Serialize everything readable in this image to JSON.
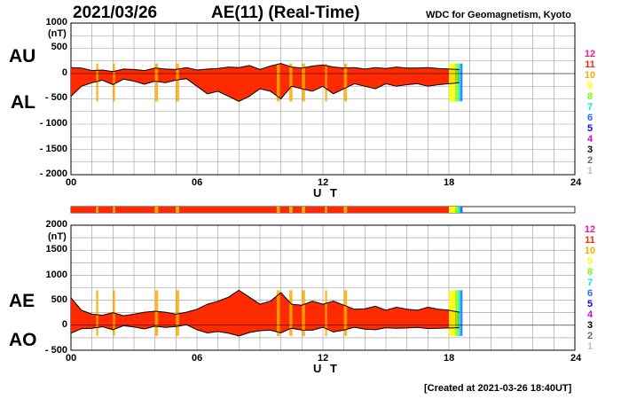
{
  "header": {
    "date": "2021/03/26",
    "title": "AE(11) (Real-Time)",
    "source": "WDC for Geomagnetism, Kyoto"
  },
  "footer": {
    "created": "[Created at 2021-03-26 18:40UT]"
  },
  "colors": {
    "12": "#ff1493",
    "11": "#ff2a00",
    "10": "#ffaa00",
    "9": "#ffff00",
    "8": "#7fff00",
    "7": "#00e5ee",
    "6": "#1e6fff",
    "5": "#1a00ff",
    "4": "#dd00dd",
    "3": "#000000",
    "2": "#666666",
    "1": "#bbbbbb"
  },
  "legend": [
    "12",
    "11",
    "10",
    "9",
    "8",
    "7",
    "6",
    "5",
    "4",
    "3",
    "2",
    "1"
  ],
  "chart_data": [
    {
      "type": "area",
      "panel": "AU/AL",
      "series": [
        {
          "name": "AU",
          "x": [
            0,
            0.5,
            1,
            1.5,
            2,
            2.5,
            3,
            3.5,
            4,
            4.5,
            5,
            5.5,
            6,
            6.5,
            7,
            7.5,
            8,
            8.5,
            9,
            9.5,
            10,
            10.5,
            11,
            11.5,
            12,
            12.5,
            13,
            13.5,
            14,
            14.5,
            15,
            15.5,
            16,
            16.5,
            17,
            17.5,
            18,
            18.5
          ],
          "values": [
            120,
            110,
            60,
            70,
            40,
            90,
            80,
            60,
            110,
            90,
            80,
            120,
            70,
            90,
            100,
            130,
            120,
            160,
            80,
            150,
            200,
            130,
            110,
            150,
            170,
            130,
            110,
            120,
            90,
            120,
            100,
            130,
            110,
            110,
            120,
            100,
            90,
            80
          ]
        },
        {
          "name": "AL",
          "x": [
            0,
            0.5,
            1,
            1.5,
            2,
            2.5,
            3,
            3.5,
            4,
            4.5,
            5,
            5.5,
            6,
            6.5,
            7,
            7.5,
            8,
            8.5,
            9,
            9.5,
            10,
            10.5,
            11,
            11.5,
            12,
            12.5,
            13,
            13.5,
            14,
            14.5,
            15,
            15.5,
            16,
            16.5,
            17,
            17.5,
            18,
            18.5
          ],
          "values": [
            -450,
            -250,
            -180,
            -130,
            -220,
            -110,
            -150,
            -210,
            -150,
            -180,
            -130,
            -100,
            -250,
            -400,
            -350,
            -450,
            -550,
            -450,
            -300,
            -350,
            -500,
            -250,
            -300,
            -350,
            -250,
            -400,
            -300,
            -200,
            -250,
            -300,
            -200,
            -250,
            -220,
            -200,
            -250,
            -220,
            -200,
            -180
          ]
        }
      ],
      "ylim": [
        -2000,
        1000
      ],
      "yticks": [
        "1000",
        "500",
        "0",
        "- 500",
        "- 1000",
        "- 1500",
        "- 2000"
      ],
      "yunit": "(nT)",
      "xticks": [
        "00",
        "06",
        "12",
        "18",
        "24"
      ],
      "xlabel": "U T",
      "labels": [
        "AU",
        "AL"
      ]
    },
    {
      "type": "area",
      "panel": "AE/AO",
      "series": [
        {
          "name": "AE",
          "x": [
            0,
            0.5,
            1,
            1.5,
            2,
            2.5,
            3,
            3.5,
            4,
            4.5,
            5,
            5.5,
            6,
            6.5,
            7,
            7.5,
            8,
            8.5,
            9,
            9.5,
            10,
            10.5,
            11,
            11.5,
            12,
            12.5,
            13,
            13.5,
            14,
            14.5,
            15,
            15.5,
            16,
            16.5,
            17,
            17.5,
            18,
            18.5
          ],
          "values": [
            550,
            300,
            220,
            200,
            250,
            190,
            220,
            260,
            280,
            260,
            220,
            260,
            320,
            420,
            480,
            560,
            700,
            560,
            420,
            480,
            650,
            420,
            400,
            480,
            420,
            480,
            400,
            320,
            330,
            380,
            300,
            360,
            320,
            300,
            360,
            320,
            300,
            260
          ]
        },
        {
          "name": "AO",
          "x": [
            0,
            0.5,
            1,
            1.5,
            2,
            2.5,
            3,
            3.5,
            4,
            4.5,
            5,
            5.5,
            6,
            6.5,
            7,
            7.5,
            8,
            8.5,
            9,
            9.5,
            10,
            10.5,
            11,
            11.5,
            12,
            12.5,
            13,
            13.5,
            14,
            14.5,
            15,
            15.5,
            16,
            16.5,
            17,
            17.5,
            18,
            18.5
          ],
          "values": [
            -160,
            -70,
            -60,
            -30,
            -90,
            -10,
            -35,
            -75,
            -20,
            -45,
            -25,
            10,
            -90,
            -155,
            -125,
            -160,
            -215,
            -145,
            -110,
            -100,
            -150,
            -60,
            -95,
            -100,
            -40,
            -135,
            -95,
            -40,
            -80,
            -90,
            -50,
            -60,
            -55,
            -45,
            -65,
            -60,
            -55,
            -50
          ]
        }
      ],
      "ylim": [
        -500,
        2000
      ],
      "yticks": [
        "2000",
        "1500",
        "1000",
        "500",
        "0",
        "- 500"
      ],
      "yunit": "(nT)",
      "xticks": [
        "00",
        "06",
        "12",
        "18",
        "24"
      ],
      "xlabel": "U T",
      "labels": [
        "AE",
        "AO"
      ]
    }
  ],
  "stations_bar": {
    "segments": [
      {
        "from": 0,
        "to": 1.2,
        "level": "11"
      },
      {
        "from": 1.2,
        "to": 1.3,
        "level": "10"
      },
      {
        "from": 1.3,
        "to": 2.0,
        "level": "11"
      },
      {
        "from": 2.0,
        "to": 2.1,
        "level": "10"
      },
      {
        "from": 2.1,
        "to": 4.0,
        "level": "11"
      },
      {
        "from": 4.0,
        "to": 4.15,
        "level": "10"
      },
      {
        "from": 4.15,
        "to": 5.0,
        "level": "11"
      },
      {
        "from": 5.0,
        "to": 5.15,
        "level": "10"
      },
      {
        "from": 5.15,
        "to": 9.8,
        "level": "11"
      },
      {
        "from": 9.8,
        "to": 9.95,
        "level": "10"
      },
      {
        "from": 9.95,
        "to": 10.4,
        "level": "11"
      },
      {
        "from": 10.4,
        "to": 10.55,
        "level": "10"
      },
      {
        "from": 10.55,
        "to": 11.0,
        "level": "11"
      },
      {
        "from": 11.0,
        "to": 11.15,
        "level": "10"
      },
      {
        "from": 11.15,
        "to": 12.1,
        "level": "11"
      },
      {
        "from": 12.1,
        "to": 12.2,
        "level": "10"
      },
      {
        "from": 12.2,
        "to": 13.0,
        "level": "11"
      },
      {
        "from": 13.0,
        "to": 13.15,
        "level": "10"
      },
      {
        "from": 13.15,
        "to": 18.0,
        "level": "11"
      },
      {
        "from": 18.0,
        "to": 18.3,
        "level": "9"
      },
      {
        "from": 18.3,
        "to": 18.45,
        "level": "8"
      },
      {
        "from": 18.45,
        "to": 18.55,
        "level": "7"
      },
      {
        "from": 18.55,
        "to": 18.65,
        "level": "6"
      }
    ]
  }
}
